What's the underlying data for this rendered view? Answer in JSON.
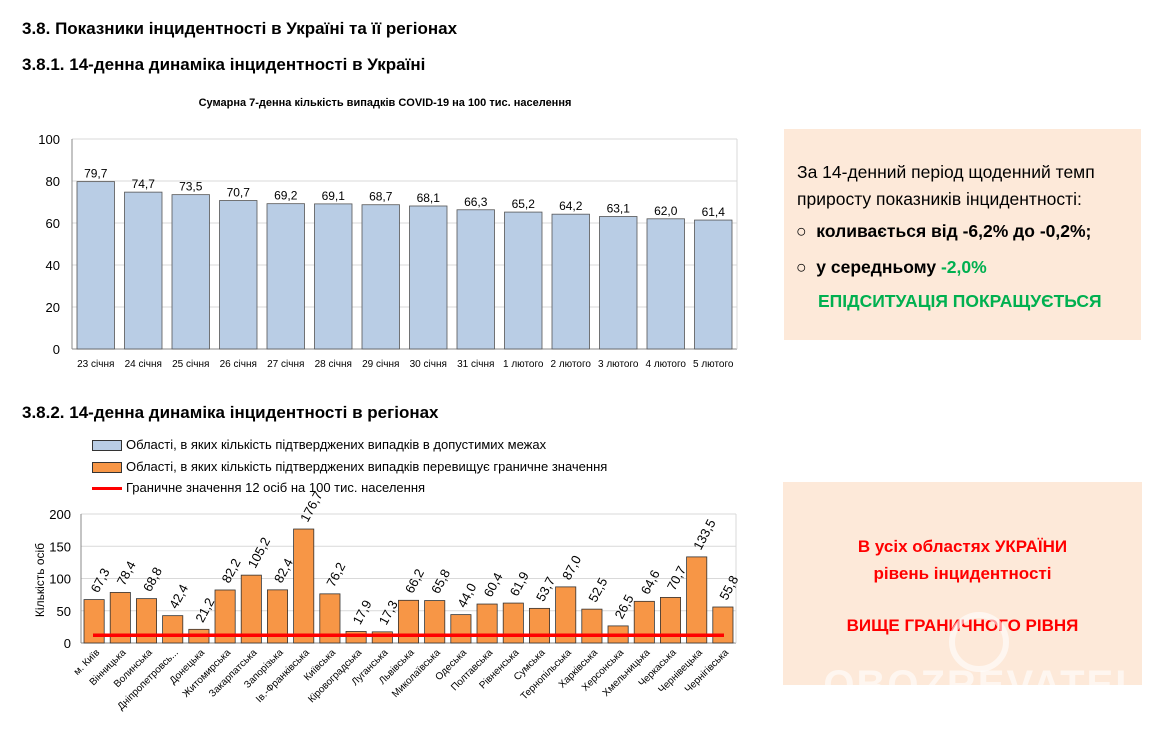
{
  "headings": {
    "section": "3.8.  Показники інцидентності в Україні та її регіонах",
    "sub1": "3.8.1.   14-денна динаміка інцидентності в Україні",
    "sub2": "3.8.2.   14-денна динаміка інцидентності в регіонах"
  },
  "panel_ukraine": {
    "text": "За 14-денний період щоденний темп приросту показників інцидентності:",
    "bullet1": "коливається від -6,2% до -0,2%;",
    "bullet2_prefix": "у середньому ",
    "bullet2_value": "-2,0%",
    "conclusion": "ЕПІДСИТУАЦІЯ ПОКРАЩУЄТЬСЯ",
    "bullet_icon": "circle-outline-icon",
    "accent": "#00b050"
  },
  "panel_regions": {
    "line1": "В усіх областях УКРАЇНИ",
    "line2": "рівень інцидентності",
    "line3": "ВИЩЕ ГРАНИЧНОГО РІВНЯ",
    "color": "#ff0000",
    "watermark": "OBOZREVATEL"
  },
  "chart_data": [
    {
      "type": "bar",
      "title": "Сумарна 7-денна кількість випадків COVID-19 на 100 тис. населення",
      "categories": [
        "23 січня",
        "24 січня",
        "25 січня",
        "26 січня",
        "27 січня",
        "28 січня",
        "29 січня",
        "30 січня",
        "31 січня",
        "1 лютого",
        "2 лютого",
        "3 лютого",
        "4 лютого",
        "5 лютого"
      ],
      "values": [
        79.7,
        74.7,
        73.5,
        70.7,
        69.2,
        69.1,
        68.7,
        68.1,
        66.3,
        65.2,
        64.2,
        63.1,
        62.0,
        61.4
      ],
      "labels": [
        "79,7",
        "74,7",
        "73,5",
        "70,7",
        "69,2",
        "69,1",
        "68,7",
        "68,1",
        "66,3",
        "65,2",
        "64,2",
        "63,1",
        "62,0",
        "61,4"
      ],
      "ylim": [
        0,
        100
      ],
      "yticks": [
        "0",
        "20",
        "40",
        "60",
        "80",
        "100"
      ],
      "grid": true,
      "bar_color": "#b9cde5"
    },
    {
      "type": "bar",
      "ylabel": "Кількість осіб",
      "categories": [
        "м. Київ",
        "Вінницька",
        "Волинська",
        "Дніпропетровсь...",
        "Донецька",
        "Житомирська",
        "Закарпатська",
        "Запорізька",
        "Ів.-Франківська",
        "Київська",
        "Кіровоградська",
        "Луганська",
        "Львівська",
        "Миколаївська",
        "Одеська",
        "Полтавська",
        "Рівненська",
        "Сумська",
        "Тернопільська",
        "Харківська",
        "Херсонська",
        "Хмельницька",
        "Черкаська",
        "Чернівецька",
        "Чернігівська"
      ],
      "values": [
        67.3,
        78.4,
        68.8,
        42.4,
        21.2,
        82.2,
        105.2,
        82.4,
        176.7,
        76.2,
        17.9,
        17.3,
        66.2,
        65.8,
        44.0,
        60.4,
        61.9,
        53.7,
        87.0,
        52.5,
        26.5,
        64.6,
        70.7,
        133.5,
        55.8
      ],
      "labels": [
        "67,3",
        "78,4",
        "68,8",
        "42,4",
        "21,2",
        "82,2",
        "105,2",
        "82,4",
        "176,7",
        "76,2",
        "17,9",
        "17,3",
        "66,2",
        "65,8",
        "44,0",
        "60,4",
        "61,9",
        "53,7",
        "87,0",
        "52,5",
        "26,5",
        "64,6",
        "70,7",
        "133,5",
        "55,8"
      ],
      "threshold": 12,
      "ylim": [
        0,
        200
      ],
      "yticks": [
        "0",
        "50",
        "100",
        "150",
        "200"
      ],
      "grid": true,
      "legend": [
        {
          "label": "Області, в яких кількість підтверджених випадків в допустимих межах",
          "color": "#b9cde5"
        },
        {
          "label": "Області, в яких кількість підтверджених випадків перевищує граничне значення",
          "color": "#f79646"
        },
        {
          "label": "Граничне значення 12 осіб на 100 тис. населення",
          "color": "#ff0000"
        }
      ],
      "legend_position": "top-left"
    }
  ]
}
